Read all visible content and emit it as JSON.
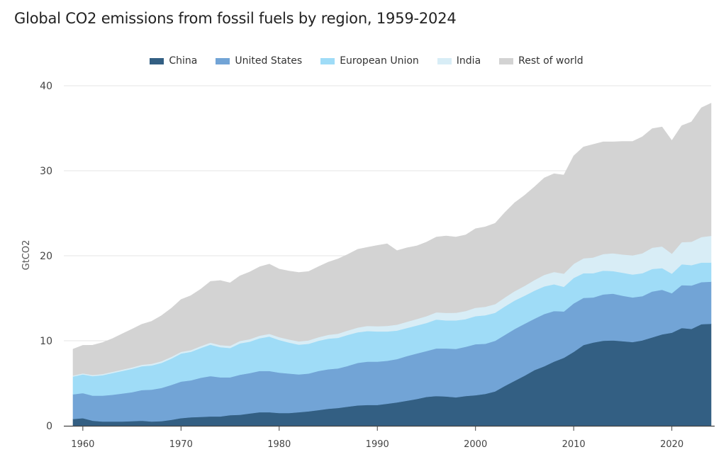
{
  "chart_data": {
    "type": "area",
    "stacked": true,
    "title": "Global CO2 emissions from fossil fuels by region, 1959-2024",
    "ylabel": "GtCO2",
    "xlabel": "",
    "xlim": [
      1959,
      2024
    ],
    "ylim": [
      0,
      40
    ],
    "x_ticks": [
      1960,
      1970,
      1980,
      1990,
      2000,
      2010,
      2020
    ],
    "y_ticks": [
      0,
      10,
      20,
      30,
      40
    ],
    "grid": "horizontal",
    "legend_position": "top-center",
    "x": [
      1959,
      1960,
      1961,
      1962,
      1963,
      1964,
      1965,
      1966,
      1967,
      1968,
      1969,
      1970,
      1971,
      1972,
      1973,
      1974,
      1975,
      1976,
      1977,
      1978,
      1979,
      1980,
      1981,
      1982,
      1983,
      1984,
      1985,
      1986,
      1987,
      1988,
      1989,
      1990,
      1991,
      1992,
      1993,
      1994,
      1995,
      1996,
      1997,
      1998,
      1999,
      2000,
      2001,
      2002,
      2003,
      2004,
      2005,
      2006,
      2007,
      2008,
      2009,
      2010,
      2011,
      2012,
      2013,
      2014,
      2015,
      2016,
      2017,
      2018,
      2019,
      2020,
      2021,
      2022,
      2023,
      2024
    ],
    "series": [
      {
        "name": "China",
        "color": "#335f83",
        "values": [
          0.8,
          0.9,
          0.6,
          0.5,
          0.5,
          0.5,
          0.55,
          0.6,
          0.5,
          0.55,
          0.7,
          0.9,
          1.0,
          1.05,
          1.1,
          1.1,
          1.25,
          1.3,
          1.45,
          1.6,
          1.6,
          1.5,
          1.5,
          1.6,
          1.7,
          1.85,
          2.0,
          2.1,
          2.25,
          2.4,
          2.45,
          2.45,
          2.6,
          2.75,
          2.95,
          3.15,
          3.4,
          3.5,
          3.45,
          3.35,
          3.5,
          3.6,
          3.75,
          4.05,
          4.7,
          5.3,
          5.9,
          6.55,
          7.0,
          7.55,
          8.0,
          8.7,
          9.5,
          9.8,
          10.0,
          10.05,
          9.95,
          9.85,
          10.05,
          10.4,
          10.75,
          10.95,
          11.5,
          11.4,
          11.95,
          12.0
        ]
      },
      {
        "name": "United States",
        "color": "#72a4d6",
        "values": [
          2.9,
          2.95,
          2.95,
          3.05,
          3.15,
          3.3,
          3.4,
          3.6,
          3.75,
          3.9,
          4.1,
          4.3,
          4.35,
          4.6,
          4.75,
          4.6,
          4.45,
          4.7,
          4.75,
          4.85,
          4.85,
          4.75,
          4.65,
          4.45,
          4.45,
          4.6,
          4.65,
          4.65,
          4.8,
          5.0,
          5.1,
          5.1,
          5.05,
          5.1,
          5.25,
          5.35,
          5.4,
          5.6,
          5.65,
          5.7,
          5.8,
          6.0,
          5.9,
          5.95,
          6.0,
          6.1,
          6.1,
          6.05,
          6.15,
          5.95,
          5.45,
          5.7,
          5.55,
          5.3,
          5.45,
          5.5,
          5.35,
          5.25,
          5.2,
          5.4,
          5.25,
          4.65,
          5.05,
          5.1,
          4.95,
          4.95
        ]
      },
      {
        "name": "European Union",
        "color": "#9fdcf7",
        "values": [
          2.1,
          2.2,
          2.3,
          2.4,
          2.55,
          2.65,
          2.75,
          2.8,
          2.85,
          2.95,
          3.1,
          3.3,
          3.35,
          3.5,
          3.7,
          3.55,
          3.45,
          3.7,
          3.7,
          3.85,
          4.05,
          3.85,
          3.65,
          3.5,
          3.5,
          3.55,
          3.6,
          3.6,
          3.65,
          3.6,
          3.6,
          3.55,
          3.45,
          3.35,
          3.3,
          3.3,
          3.3,
          3.4,
          3.3,
          3.35,
          3.25,
          3.3,
          3.35,
          3.3,
          3.35,
          3.35,
          3.3,
          3.3,
          3.25,
          3.15,
          2.9,
          3.0,
          2.9,
          2.85,
          2.8,
          2.65,
          2.7,
          2.7,
          2.7,
          2.65,
          2.55,
          2.3,
          2.45,
          2.4,
          2.3,
          2.25
        ]
      },
      {
        "name": "India",
        "color": "#d8edf6",
        "values": [
          0.12,
          0.12,
          0.13,
          0.14,
          0.15,
          0.16,
          0.17,
          0.18,
          0.19,
          0.2,
          0.21,
          0.2,
          0.21,
          0.22,
          0.23,
          0.24,
          0.26,
          0.28,
          0.29,
          0.3,
          0.32,
          0.33,
          0.36,
          0.38,
          0.4,
          0.42,
          0.45,
          0.48,
          0.52,
          0.56,
          0.6,
          0.62,
          0.66,
          0.7,
          0.73,
          0.76,
          0.8,
          0.85,
          0.88,
          0.9,
          0.95,
          0.98,
          1.0,
          1.02,
          1.05,
          1.1,
          1.16,
          1.25,
          1.35,
          1.45,
          1.55,
          1.65,
          1.75,
          1.85,
          1.95,
          2.1,
          2.15,
          2.25,
          2.35,
          2.5,
          2.55,
          2.35,
          2.6,
          2.75,
          3.0,
          3.15
        ]
      },
      {
        "name": "Rest of world",
        "color": "#d3d3d3",
        "values": [
          3.1,
          3.3,
          3.5,
          3.7,
          3.9,
          4.2,
          4.5,
          4.75,
          5.0,
          5.35,
          5.7,
          6.15,
          6.4,
          6.7,
          7.2,
          7.6,
          7.4,
          7.65,
          7.9,
          8.1,
          8.2,
          8.0,
          8.05,
          8.1,
          8.1,
          8.3,
          8.55,
          8.8,
          8.95,
          9.2,
          9.25,
          9.5,
          9.65,
          8.7,
          8.7,
          8.6,
          8.7,
          8.85,
          9.05,
          8.9,
          8.95,
          9.3,
          9.4,
          9.5,
          10.0,
          10.4,
          10.65,
          10.95,
          11.4,
          11.55,
          11.6,
          12.7,
          13.1,
          13.3,
          13.2,
          13.1,
          13.3,
          13.4,
          13.7,
          14.0,
          14.05,
          13.3,
          13.7,
          14.1,
          15.2,
          15.6
        ]
      }
    ]
  }
}
